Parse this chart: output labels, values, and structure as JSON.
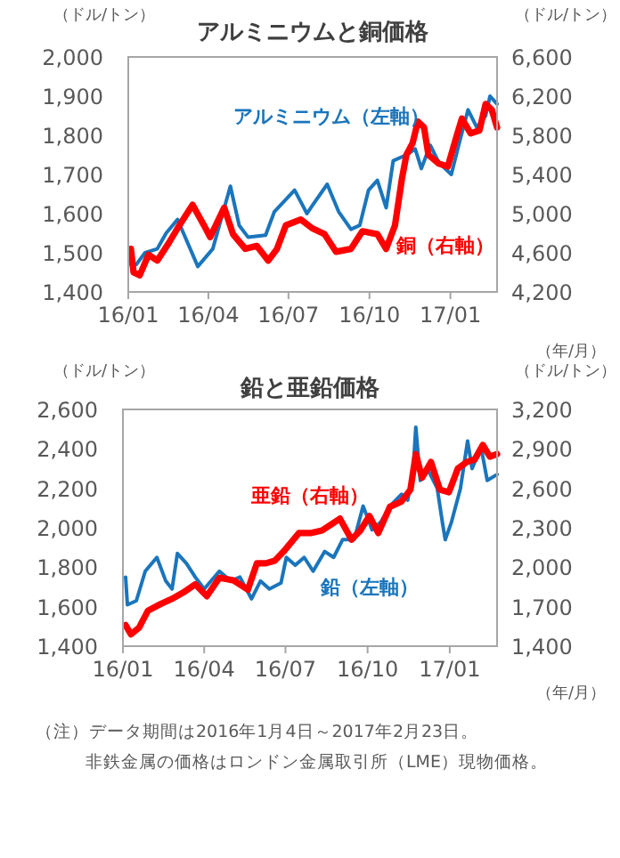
{
  "chart_data": [
    {
      "type": "line",
      "title": "アルミニウムと銅価格",
      "ylabel": "（ドル/トン）",
      "y2label": "（ドル/トン）",
      "xlabel": "（年/月）",
      "xlim": [
        "2016-01-01",
        "2017-02-23"
      ],
      "xticks": [
        {
          "value": "2016-01-01",
          "label": "16/01"
        },
        {
          "value": "2016-04-01",
          "label": "16/04"
        },
        {
          "value": "2016-07-01",
          "label": "16/07"
        },
        {
          "value": "2016-10-01",
          "label": "16/10"
        },
        {
          "value": "2017-01-01",
          "label": "17/01"
        }
      ],
      "ylim": [
        1400,
        2000
      ],
      "yticks": [
        {
          "value": 1400,
          "label": "1,400"
        },
        {
          "value": 1500,
          "label": "1,500"
        },
        {
          "value": 1600,
          "label": "1,600"
        },
        {
          "value": 1700,
          "label": "1,700"
        },
        {
          "value": 1800,
          "label": "1,800"
        },
        {
          "value": 1900,
          "label": "1,900"
        },
        {
          "value": 2000,
          "label": "2,000"
        }
      ],
      "y2lim": [
        4200,
        6600
      ],
      "y2ticks": [
        {
          "value": 4200,
          "label": "4,200"
        },
        {
          "value": 4600,
          "label": "4,600"
        },
        {
          "value": 5000,
          "label": "5,000"
        },
        {
          "value": 5400,
          "label": "5,400"
        },
        {
          "value": 5800,
          "label": "5,800"
        },
        {
          "value": 6200,
          "label": "6,200"
        },
        {
          "value": 6600,
          "label": "6,600"
        }
      ],
      "series": [
        {
          "name": "アルミニウム（左軸）",
          "color": "#1a75bc",
          "x": [
            "2016-01-04",
            "2016-01-10",
            "2016-01-20",
            "2016-02-03",
            "2016-02-13",
            "2016-02-26",
            "2016-03-20",
            "2016-04-06",
            "2016-04-26",
            "2016-05-06",
            "2016-05-16",
            "2016-06-05",
            "2016-06-15",
            "2016-07-08",
            "2016-07-22",
            "2016-07-28",
            "2016-08-14",
            "2016-08-27",
            "2016-09-10",
            "2016-09-20",
            "2016-09-30",
            "2016-10-10",
            "2016-10-20",
            "2016-10-28",
            "2016-11-12",
            "2016-11-22",
            "2016-11-29",
            "2016-12-09",
            "2016-12-19",
            "2017-01-02",
            "2017-01-11",
            "2017-01-21",
            "2017-01-31",
            "2017-02-10",
            "2017-02-15",
            "2017-02-23"
          ],
          "values": [
            1470,
            1470,
            1500,
            1510,
            1550,
            1585,
            1465,
            1510,
            1670,
            1570,
            1540,
            1545,
            1605,
            1660,
            1600,
            1620,
            1675,
            1605,
            1560,
            1570,
            1660,
            1685,
            1615,
            1735,
            1750,
            1765,
            1715,
            1775,
            1730,
            1700,
            1780,
            1865,
            1820,
            1850,
            1900,
            1880
          ]
        },
        {
          "name": "銅（右軸）",
          "color": "#ff0000",
          "axis": "y2",
          "x": [
            "2016-01-04",
            "2016-01-07",
            "2016-01-14",
            "2016-01-24",
            "2016-02-03",
            "2016-02-16",
            "2016-02-26",
            "2016-03-14",
            "2016-03-27",
            "2016-04-03",
            "2016-04-19",
            "2016-04-29",
            "2016-05-13",
            "2016-05-26",
            "2016-06-08",
            "2016-06-18",
            "2016-06-28",
            "2016-07-15",
            "2016-07-28",
            "2016-08-11",
            "2016-08-24",
            "2016-09-10",
            "2016-09-23",
            "2016-10-10",
            "2016-10-20",
            "2016-10-30",
            "2016-11-07",
            "2016-11-12",
            "2016-11-19",
            "2016-11-25",
            "2016-12-02",
            "2016-12-07",
            "2016-12-19",
            "2016-12-29",
            "2017-01-08",
            "2017-01-14",
            "2017-01-24",
            "2017-02-03",
            "2017-02-10",
            "2017-02-17",
            "2017-02-23"
          ],
          "values": [
            4640,
            4400,
            4370,
            4580,
            4520,
            4700,
            4850,
            5090,
            4880,
            4760,
            5060,
            4790,
            4640,
            4670,
            4520,
            4640,
            4880,
            4940,
            4850,
            4790,
            4610,
            4640,
            4820,
            4790,
            4640,
            4880,
            5360,
            5600,
            5720,
            5940,
            5880,
            5600,
            5510,
            5480,
            5790,
            5970,
            5820,
            5850,
            6120,
            6060,
            5880
          ]
        }
      ]
    },
    {
      "type": "line",
      "title": "鉛と亜鉛価格",
      "ylabel": "（ドル/トン）",
      "y2label": "（ドル/トン）",
      "xlabel": "（年/月）",
      "xlim": [
        "2016-01-01",
        "2017-02-23"
      ],
      "xticks": [
        {
          "value": "2016-01-01",
          "label": "16/01"
        },
        {
          "value": "2016-04-01",
          "label": "16/04"
        },
        {
          "value": "2016-07-01",
          "label": "16/07"
        },
        {
          "value": "2016-10-01",
          "label": "16/10"
        },
        {
          "value": "2017-01-01",
          "label": "17/01"
        }
      ],
      "ylim": [
        1400,
        2600
      ],
      "yticks": [
        {
          "value": 1400,
          "label": "1,400"
        },
        {
          "value": 1600,
          "label": "1,600"
        },
        {
          "value": 1800,
          "label": "1,800"
        },
        {
          "value": 2000,
          "label": "2,000"
        },
        {
          "value": 2200,
          "label": "2,200"
        },
        {
          "value": 2400,
          "label": "2,400"
        },
        {
          "value": 2600,
          "label": "2,600"
        }
      ],
      "y2lim": [
        1400,
        3200
      ],
      "y2ticks": [
        {
          "value": 1400,
          "label": "1,400"
        },
        {
          "value": 1700,
          "label": "1,700"
        },
        {
          "value": 2000,
          "label": "2,000"
        },
        {
          "value": 2300,
          "label": "2,300"
        },
        {
          "value": 2600,
          "label": "2,600"
        },
        {
          "value": 2900,
          "label": "2,900"
        },
        {
          "value": 3200,
          "label": "3,200"
        }
      ],
      "annotations": [
        "（注）データ期間は2016年1月4日～2017年2月23日。",
        "非鉄金属の価格はロンドン金属取引所（LME）現物価格。"
      ],
      "series": [
        {
          "name": "鉛（左軸）",
          "color": "#1a75bc",
          "x": [
            "2016-01-04",
            "2016-01-06",
            "2016-01-16",
            "2016-01-26",
            "2016-02-08",
            "2016-02-18",
            "2016-02-25",
            "2016-03-02",
            "2016-03-12",
            "2016-03-22",
            "2016-04-01",
            "2016-04-18",
            "2016-05-01",
            "2016-05-11",
            "2016-05-24",
            "2016-06-03",
            "2016-06-13",
            "2016-06-26",
            "2016-07-02",
            "2016-07-12",
            "2016-07-22",
            "2016-08-01",
            "2016-08-14",
            "2016-08-24",
            "2016-09-03",
            "2016-09-16",
            "2016-09-26",
            "2016-10-06",
            "2016-10-16",
            "2016-10-26",
            "2016-11-08",
            "2016-11-15",
            "2016-11-21",
            "2016-11-24",
            "2016-11-29",
            "2016-12-08",
            "2016-12-18",
            "2016-12-24",
            "2016-12-27",
            "2017-01-03",
            "2017-01-13",
            "2017-01-21",
            "2017-01-26",
            "2017-02-05",
            "2017-02-12",
            "2017-02-23"
          ],
          "values": [
            1750,
            1610,
            1630,
            1780,
            1850,
            1730,
            1690,
            1870,
            1820,
            1750,
            1690,
            1780,
            1730,
            1750,
            1640,
            1730,
            1690,
            1720,
            1850,
            1810,
            1850,
            1780,
            1880,
            1850,
            1940,
            1940,
            2110,
            1990,
            2030,
            2110,
            2170,
            2140,
            2290,
            2510,
            2240,
            2290,
            2200,
            2020,
            1940,
            2030,
            2200,
            2440,
            2300,
            2410,
            2240,
            2270
          ]
        },
        {
          "name": "亜鉛（右軸）",
          "color": "#ff0000",
          "axis": "y2",
          "x": [
            "2016-01-04",
            "2016-01-10",
            "2016-01-19",
            "2016-01-29",
            "2016-02-12",
            "2016-02-25",
            "2016-03-09",
            "2016-03-22",
            "2016-04-04",
            "2016-04-18",
            "2016-05-04",
            "2016-05-20",
            "2016-05-30",
            "2016-06-09",
            "2016-06-19",
            "2016-06-29",
            "2016-07-16",
            "2016-07-29",
            "2016-08-11",
            "2016-08-31",
            "2016-09-13",
            "2016-09-23",
            "2016-10-03",
            "2016-10-13",
            "2016-10-26",
            "2016-11-08",
            "2016-11-18",
            "2016-11-24",
            "2016-12-01",
            "2016-12-11",
            "2016-12-21",
            "2016-12-31",
            "2017-01-10",
            "2017-01-20",
            "2017-01-29",
            "2017-02-07",
            "2017-02-15",
            "2017-02-23"
          ],
          "values": [
            1560,
            1490,
            1540,
            1670,
            1720,
            1760,
            1810,
            1870,
            1780,
            1920,
            1900,
            1830,
            2030,
            2030,
            2050,
            2120,
            2260,
            2260,
            2280,
            2370,
            2210,
            2280,
            2390,
            2260,
            2460,
            2500,
            2590,
            2860,
            2680,
            2800,
            2590,
            2570,
            2750,
            2800,
            2820,
            2930,
            2840,
            2860
          ]
        }
      ]
    }
  ]
}
